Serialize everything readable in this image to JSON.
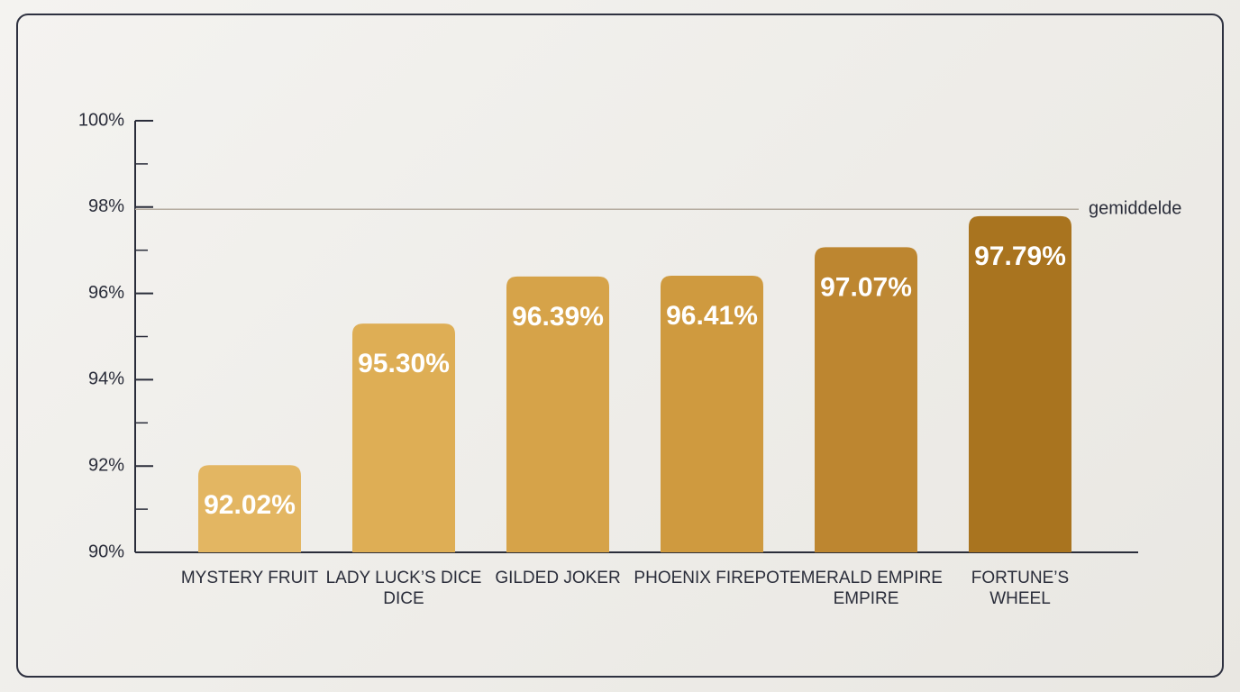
{
  "chart_data": {
    "type": "bar",
    "categories": [
      [
        "MYSTERY FRUIT"
      ],
      [
        "LADY LUCK’S DICE",
        "DICE"
      ],
      [
        "GILDED JOKER"
      ],
      [
        "PHOENIX FIREPOT"
      ],
      [
        "EMERALD EMPIRE",
        "EMPIRE"
      ],
      [
        "FORTUNE’S",
        "WHEEL"
      ]
    ],
    "values": [
      92.02,
      95.3,
      96.39,
      96.41,
      97.07,
      97.79
    ],
    "value_labels": [
      "92.02%",
      "95.30%",
      "96.39%",
      "96.41%",
      "97.07%",
      "97.79%"
    ],
    "colors": [
      "#e3b662",
      "#deae55",
      "#d6a349",
      "#cf9a3f",
      "#bd8630",
      "#a9741f"
    ],
    "ylim": [
      90,
      100
    ],
    "yticks": [
      {
        "value": 90,
        "label": "90%"
      },
      {
        "value": 92,
        "label": "92%"
      },
      {
        "value": 94,
        "label": "94%"
      },
      {
        "value": 96,
        "label": "96%"
      },
      {
        "value": 98,
        "label": "98%"
      },
      {
        "value": 100,
        "label": "100%"
      }
    ],
    "minor_yticks": [
      91,
      93,
      95,
      97,
      99
    ],
    "reference_line": {
      "value": 97.95,
      "label": "gemiddelde",
      "color": "#b5aca0"
    }
  }
}
